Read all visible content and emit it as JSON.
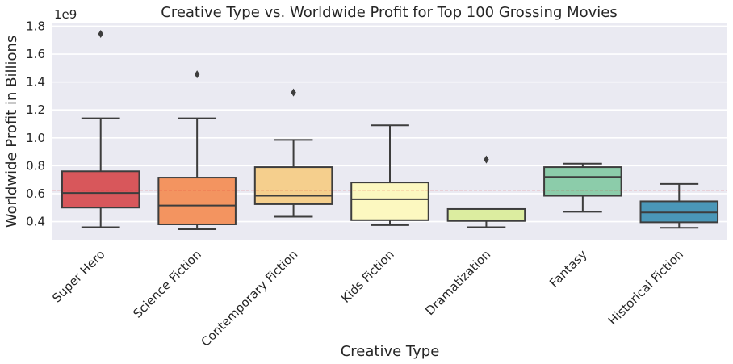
{
  "chart_data": {
    "type": "box",
    "title": "Creative Type vs. Worldwide Profit for Top 100 Grossing Movies",
    "xlabel": "Creative Type",
    "ylabel": "Worldwide Profit in Billions",
    "y_offset_label": "1e9",
    "ylim": [
      0.27,
      1.82
    ],
    "yticks": [
      0.4,
      0.6,
      0.8,
      1.0,
      1.2,
      1.4,
      1.6,
      1.8
    ],
    "ytick_labels": [
      "0.4",
      "0.6",
      "0.8",
      "1.0",
      "1.2",
      "1.4",
      "1.6",
      "1.8"
    ],
    "grid": true,
    "reference_line": {
      "y": 0.625,
      "color": "#e41a1c",
      "style": "dashed"
    },
    "categories": [
      "Super Hero",
      "Science Fiction",
      "Contemporary Fiction",
      "Kids Fiction",
      "Dramatization",
      "Fantasy",
      "Historical Fiction"
    ],
    "boxes": [
      {
        "category": "Super Hero",
        "whislo": 0.36,
        "q1": 0.5,
        "med": 0.605,
        "q3": 0.76,
        "whishi": 1.14,
        "fliers": [
          1.745
        ],
        "color": "#d8575b"
      },
      {
        "category": "Science Fiction",
        "whislo": 0.345,
        "q1": 0.38,
        "med": 0.515,
        "q3": 0.715,
        "whishi": 1.14,
        "fliers": [
          1.455
        ],
        "color": "#f39460"
      },
      {
        "category": "Contemporary Fiction",
        "whislo": 0.435,
        "q1": 0.525,
        "med": 0.585,
        "q3": 0.79,
        "whishi": 0.985,
        "fliers": [
          1.325
        ],
        "color": "#f5cf8d"
      },
      {
        "category": "Kids Fiction",
        "whislo": 0.375,
        "q1": 0.41,
        "med": 0.56,
        "q3": 0.68,
        "whishi": 1.09,
        "fliers": [],
        "color": "#fcf8c0"
      },
      {
        "category": "Dramatization",
        "whislo": 0.36,
        "q1": 0.405,
        "med": 0.405,
        "q3": 0.49,
        "whishi": 0.49,
        "fliers": [
          0.845
        ],
        "color": "#dceda0"
      },
      {
        "category": "Fantasy",
        "whislo": 0.47,
        "q1": 0.585,
        "med": 0.72,
        "q3": 0.79,
        "whishi": 0.815,
        "fliers": [],
        "color": "#8cccaa"
      },
      {
        "category": "Historical Fiction",
        "whislo": 0.355,
        "q1": 0.395,
        "med": 0.465,
        "q3": 0.545,
        "whishi": 0.67,
        "fliers": [],
        "color": "#4a97b8"
      }
    ]
  }
}
